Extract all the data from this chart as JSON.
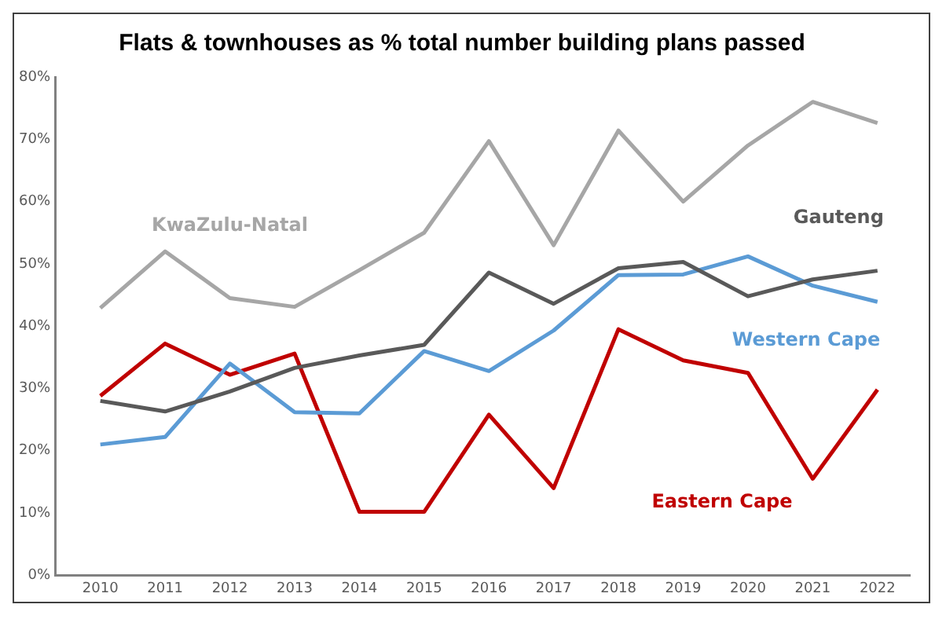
{
  "chart_data": {
    "type": "line",
    "title": "Flats & townhouses as % total number building plans passed",
    "x": [
      2010,
      2011,
      2012,
      2013,
      2014,
      2015,
      2016,
      2017,
      2018,
      2019,
      2020,
      2021,
      2022
    ],
    "series": [
      {
        "name": "KwaZulu-Natal",
        "color": "#a6a6a6",
        "values": [
          42.9,
          52,
          44.5,
          43.1,
          49,
          55,
          69.7,
          53,
          71.4,
          60,
          69,
          76,
          72.6
        ]
      },
      {
        "name": "Gauteng",
        "color": "#595959",
        "values": [
          28,
          26.3,
          29.5,
          33.3,
          35.3,
          37,
          48.6,
          43.6,
          49.3,
          50.3,
          44.8,
          47.5,
          48.9
        ]
      },
      {
        "name": "Western Cape",
        "color": "#5b9bd5",
        "values": [
          21,
          22.2,
          34,
          26.2,
          26,
          36,
          32.8,
          39.3,
          48.2,
          48.3,
          51.2,
          46.5,
          43.9
        ]
      },
      {
        "name": "Eastern Cape",
        "color": "#c00000",
        "values": [
          28.8,
          37.2,
          32.2,
          35.6,
          10.2,
          10.2,
          25.8,
          14,
          39.5,
          34.5,
          32.5,
          15.5,
          29.8
        ]
      }
    ],
    "xlim": [
      2009.3,
      2022.5
    ],
    "xticks": [
      2010,
      2011,
      2012,
      2013,
      2014,
      2015,
      2016,
      2017,
      2018,
      2019,
      2020,
      2021,
      2022
    ],
    "ylim": [
      0,
      80
    ],
    "yticks": [
      {
        "value": 0,
        "label": "0%"
      },
      {
        "value": 10,
        "label": "10%"
      },
      {
        "value": 20,
        "label": "20%"
      },
      {
        "value": 30,
        "label": "30%"
      },
      {
        "value": 40,
        "label": "40%"
      },
      {
        "value": 50,
        "label": "50%"
      },
      {
        "value": 60,
        "label": "60%"
      },
      {
        "value": 70,
        "label": "70%"
      },
      {
        "value": 80,
        "label": "80%"
      }
    ],
    "grid": false,
    "legend": false,
    "marker": "none",
    "line_style": "solid"
  }
}
